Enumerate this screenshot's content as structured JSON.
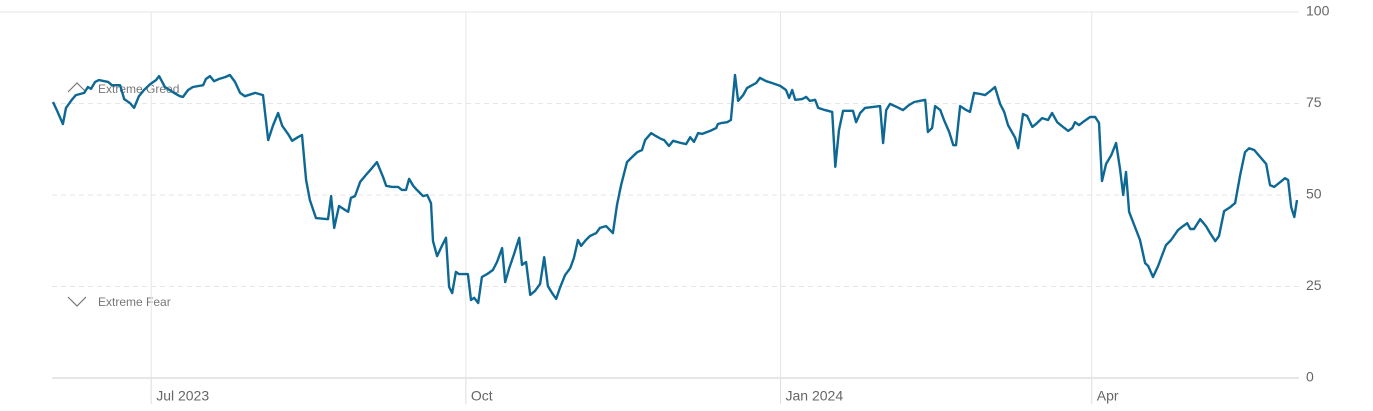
{
  "chart_data": {
    "type": "line",
    "color": "#0e6894",
    "annotations": [
      "Extreme Greed",
      "Extreme Fear"
    ],
    "xlim": [
      1,
      365
    ],
    "xticks": [
      {
        "value": 30,
        "label": "Jul 2023"
      },
      {
        "value": 122,
        "label": "Oct"
      },
      {
        "value": 214,
        "label": "Jan 2024"
      },
      {
        "value": 305,
        "label": "Apr"
      }
    ],
    "ylim": [
      0,
      100
    ],
    "yticks": [
      0,
      25,
      50,
      75,
      100
    ],
    "grid": true,
    "x": [
      1.3,
      2.5,
      4.2,
      5.1,
      6.8,
      8.0,
      10.4,
      11.5,
      12.4,
      13.6,
      14.7,
      17.4,
      18.5,
      20.9,
      22.1,
      23.8,
      25.0,
      26.4,
      27.9,
      29.7,
      31.4,
      32.3,
      34.0,
      36.7,
      38.4,
      39.3,
      40.8,
      42.2,
      45.2,
      46.0,
      47.2,
      48.4,
      49.8,
      51.6,
      53.0,
      54.5,
      56.0,
      57.4,
      60.4,
      62.7,
      64.2,
      65.6,
      67.1,
      68.3,
      70.0,
      71.2,
      72.9,
      74.1,
      75.3,
      76.4,
      78.2,
      81.7,
      82.6,
      83.5,
      84.9,
      86.7,
      87.6,
      88.4,
      89.6,
      91.1,
      92.8,
      94.6,
      96.0,
      97.8,
      98.7,
      100.4,
      102.2,
      103.3,
      104.5,
      105.4,
      106.6,
      107.7,
      109.5,
      110.7,
      111.8,
      112.4,
      113.6,
      115.0,
      116.2,
      117.1,
      118.0,
      119.1,
      120.0,
      122.6,
      123.5,
      124.4,
      125.6,
      126.7,
      128.2,
      129.9,
      131.1,
      132.6,
      133.5,
      134.6,
      136.1,
      137.6,
      138.4,
      139.6,
      140.8,
      142.2,
      143.7,
      144.9,
      146.0,
      147.2,
      148.4,
      149.5,
      151.0,
      152.5,
      153.6,
      154.8,
      155.7,
      157.1,
      158.3,
      160.1,
      161.2,
      163.0,
      165.0,
      166.2,
      167.4,
      169.1,
      170.3,
      172.1,
      173.5,
      174.4,
      176.2,
      177.6,
      179.1,
      180.0,
      181.4,
      182.6,
      184.9,
      186.4,
      187.6,
      188.7,
      189.9,
      191.1,
      193.4,
      195.2,
      195.7,
      196.9,
      198.4,
      199.5,
      200.7,
      201.6,
      203.1,
      204.2,
      205.7,
      206.9,
      208.0,
      209.8,
      211.5,
      213.9,
      215.6,
      216.5,
      217.4,
      218.3,
      220.3,
      221.5,
      222.6,
      224.1,
      225.0,
      227.0,
      229.1,
      230.0,
      231.1,
      232.3,
      235.2,
      236.1,
      237.3,
      238.7,
      243.1,
      244.0,
      244.9,
      246.0,
      248.1,
      249.8,
      251.6,
      253.1,
      256.3,
      257.1,
      258.3,
      259.2,
      260.7,
      261.8,
      263.3,
      264.5,
      265.3,
      266.5,
      268.3,
      269.4,
      270.6,
      272.4,
      273.8,
      275.3,
      276.7,
      278.2,
      279.4,
      280.5,
      282.6,
      283.5,
      284.9,
      286.1,
      287.6,
      288.7,
      290.5,
      292.2,
      293.4,
      294.9,
      296.6,
      298.1,
      299.3,
      300.1,
      301.3,
      302.8,
      304.5,
      306.0,
      307.1,
      308.0,
      309.2,
      310.7,
      312.1,
      313.3,
      314.2,
      315.0,
      315.9,
      317.4,
      319.1,
      320.6,
      321.5,
      322.9,
      324.4,
      325.6,
      326.7,
      328.2,
      330.2,
      331.7,
      332.9,
      333.8,
      334.9,
      336.7,
      338.4,
      339.6,
      341.1,
      342.2,
      343.7,
      345.5,
      346.9,
      348.4,
      349.8,
      351.0,
      352.5,
      354.2,
      356.0,
      357.1,
      358.3,
      359.8,
      361.5,
      362.4,
      363.3,
      364.2,
      365.0
    ],
    "values": [
      75.4,
      73,
      69.4,
      73.8,
      76,
      77.3,
      77.9,
      79.5,
      79,
      80.9,
      81.4,
      80.9,
      80,
      80,
      76.2,
      75.1,
      73.8,
      77,
      78.7,
      80.3,
      81.4,
      82.5,
      79.5,
      77.9,
      77,
      76.8,
      78.7,
      79.5,
      80,
      81.7,
      82.5,
      81.1,
      81.7,
      82.2,
      82.8,
      80.9,
      77.9,
      77,
      77.9,
      77.3,
      65,
      69,
      72.4,
      68.9,
      66.7,
      64.8,
      65.8,
      66.4,
      54.1,
      48.6,
      43.7,
      43.4,
      49.7,
      41,
      47,
      45.9,
      45.4,
      49.2,
      49.7,
      53.6,
      55.5,
      57.4,
      59,
      54.9,
      52.5,
      52.2,
      52.2,
      51.4,
      51.4,
      54.4,
      52.5,
      51.4,
      49.7,
      50,
      47.8,
      37.4,
      33.3,
      36.1,
      38.3,
      24.9,
      23.2,
      29,
      28.4,
      28.4,
      21.3,
      21.9,
      20.5,
      27.6,
      28.4,
      29.5,
      31.7,
      35.5,
      26.2,
      29.8,
      33.9,
      38.3,
      30.9,
      31.7,
      22.7,
      23.8,
      25.7,
      33,
      25.1,
      23.2,
      21.6,
      24.6,
      28.1,
      30,
      32.8,
      37.7,
      36.1,
      37.7,
      38.8,
      39.6,
      41,
      41.5,
      39.6,
      47.3,
      52.7,
      59,
      60.1,
      61.7,
      62.3,
      65,
      66.9,
      66.1,
      65.3,
      65,
      63.4,
      64.8,
      64.2,
      63.9,
      65.8,
      64.5,
      66.9,
      66.7,
      67.5,
      68.3,
      69.4,
      69.7,
      69.9,
      70.5,
      82.8,
      75.7,
      77.3,
      79.2,
      80,
      80.6,
      82,
      81.1,
      80.6,
      79.8,
      78.7,
      76.5,
      78.7,
      76,
      76.2,
      76.8,
      75.7,
      76,
      73.8,
      73.2,
      72.7,
      57.7,
      67.8,
      73,
      73,
      69.9,
      72.4,
      73.8,
      74.3,
      64.2,
      73.2,
      74.9,
      74,
      73.2,
      74.6,
      75.4,
      76,
      67.2,
      68.3,
      74.3,
      73.2,
      70.5,
      67.2,
      63.6,
      63.6,
      74.3,
      73.2,
      72.7,
      77.9,
      77.6,
      77.3,
      78.4,
      79.5,
      74.9,
      72.7,
      69.1,
      65.6,
      62.8,
      72.1,
      71.6,
      68.6,
      69.4,
      71,
      70.5,
      72.4,
      69.9,
      68.6,
      67.5,
      68.3,
      69.9,
      69.1,
      70.2,
      71.3,
      71.3,
      69.7,
      53.8,
      58.5,
      60.9,
      64.2,
      56.8,
      50,
      56.3,
      45.4,
      41.8,
      37.7,
      31.4,
      30.6,
      27.6,
      30.6,
      33.6,
      36.3,
      37.7,
      40.4,
      41.5,
      42.3,
      40.7,
      40.7,
      43.4,
      41.5,
      39.6,
      37.4,
      38.8,
      45.6,
      46.7,
      47.8,
      55.5,
      61.7,
      62.8,
      62.3,
      60.4,
      58.5,
      52.7,
      52.2,
      53.3,
      54.6,
      54.1,
      46.7,
      44,
      48.6
    ]
  }
}
